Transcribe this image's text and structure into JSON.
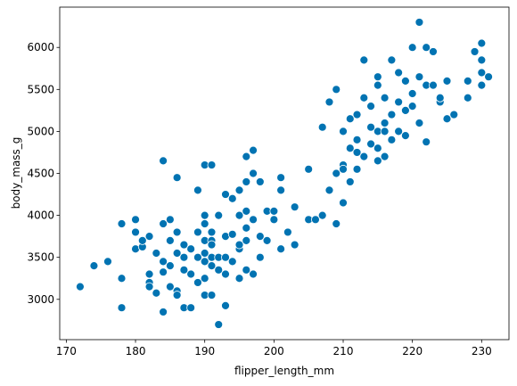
{
  "chart_data": {
    "type": "scatter",
    "x_label": "flipper_length_mm",
    "y_label": "body_mass_g",
    "color": "#0173b2",
    "xlim": [
      169.05,
      233.95
    ],
    "ylim": [
      2520,
      6480
    ],
    "xticks": [
      170,
      180,
      190,
      200,
      210,
      220,
      230
    ],
    "yticks": [
      3000,
      3500,
      4000,
      4500,
      5000,
      5500,
      6000
    ],
    "x": [
      172,
      174,
      176,
      178,
      178,
      178,
      180,
      180,
      180,
      181,
      181,
      182,
      182,
      182,
      182,
      183,
      183,
      184,
      184,
      184,
      184,
      184,
      185,
      185,
      185,
      185,
      186,
      186,
      186,
      186,
      186,
      187,
      187,
      187,
      187,
      188,
      188,
      188,
      189,
      189,
      189,
      189,
      190,
      190,
      190,
      190,
      190,
      190,
      190,
      190,
      191,
      191,
      191,
      191,
      191,
      191,
      191,
      192,
      192,
      192,
      192,
      193,
      193,
      193,
      193,
      193,
      194,
      194,
      194,
      195,
      195,
      195,
      195,
      195,
      196,
      196,
      196,
      196,
      196,
      196,
      197,
      197,
      197,
      197,
      198,
      198,
      198,
      199,
      199,
      200,
      200,
      201,
      201,
      202,
      201,
      203,
      203,
      205,
      205,
      207,
      206,
      207,
      208,
      208,
      209,
      209,
      209,
      210,
      210,
      210,
      210,
      211,
      211,
      211,
      212,
      212,
      212,
      212,
      213,
      213,
      213,
      214,
      214,
      214,
      215,
      215,
      215,
      215,
      215,
      216,
      216,
      216,
      217,
      217,
      217,
      218,
      218,
      218,
      219,
      219,
      220,
      220,
      220,
      221,
      221,
      221,
      222,
      222,
      222,
      223,
      223,
      224,
      225,
      225,
      226,
      228,
      228,
      229,
      230,
      230,
      230,
      230,
      231,
      224,
      219,
      216
    ],
    "y": [
      3150,
      3400,
      3450,
      3250,
      2900,
      3900,
      3950,
      3800,
      3600,
      3625,
      3700,
      3750,
      3200,
      3150,
      3300,
      3550,
      3075,
      3900,
      4650,
      3325,
      2850,
      3450,
      3700,
      3950,
      3400,
      3150,
      3800,
      3550,
      3100,
      4450,
      3050,
      3650,
      3350,
      3500,
      2900,
      3300,
      2900,
      3600,
      3200,
      3500,
      3800,
      4300,
      3450,
      3900,
      3250,
      4600,
      3050,
      4000,
      3700,
      3550,
      3800,
      3050,
      3700,
      3500,
      4600,
      3650,
      3400,
      3500,
      4000,
      2700,
      3350,
      4250,
      3750,
      3500,
      2925,
      3300,
      3775,
      4200,
      3450,
      4300,
      4000,
      3600,
      3650,
      3250,
      4050,
      4700,
      3350,
      3700,
      4400,
      3850,
      4500,
      4775,
      3300,
      3950,
      4400,
      3750,
      3500,
      4050,
      3700,
      3950,
      4050,
      4450,
      3600,
      3800,
      4300,
      4100,
      3650,
      3950,
      4550,
      4000,
      3950,
      5050,
      5350,
      4300,
      4500,
      5500,
      3900,
      4600,
      5000,
      4550,
      4150,
      4800,
      4400,
      5150,
      4750,
      4900,
      4550,
      5200,
      5850,
      5400,
      4700,
      4850,
      5050,
      5300,
      5000,
      5650,
      4800,
      5550,
      4650,
      5100,
      5000,
      4700,
      5850,
      5200,
      4900,
      5350,
      5000,
      5700,
      5250,
      4950,
      5450,
      6000,
      5300,
      6300,
      5650,
      5100,
      5550,
      6000,
      4875,
      5550,
      5950,
      5350,
      5150,
      5600,
      5200,
      5400,
      5600,
      5950,
      6050,
      5550,
      5700,
      5850,
      5650,
      5400,
      5600,
      5400
    ]
  }
}
